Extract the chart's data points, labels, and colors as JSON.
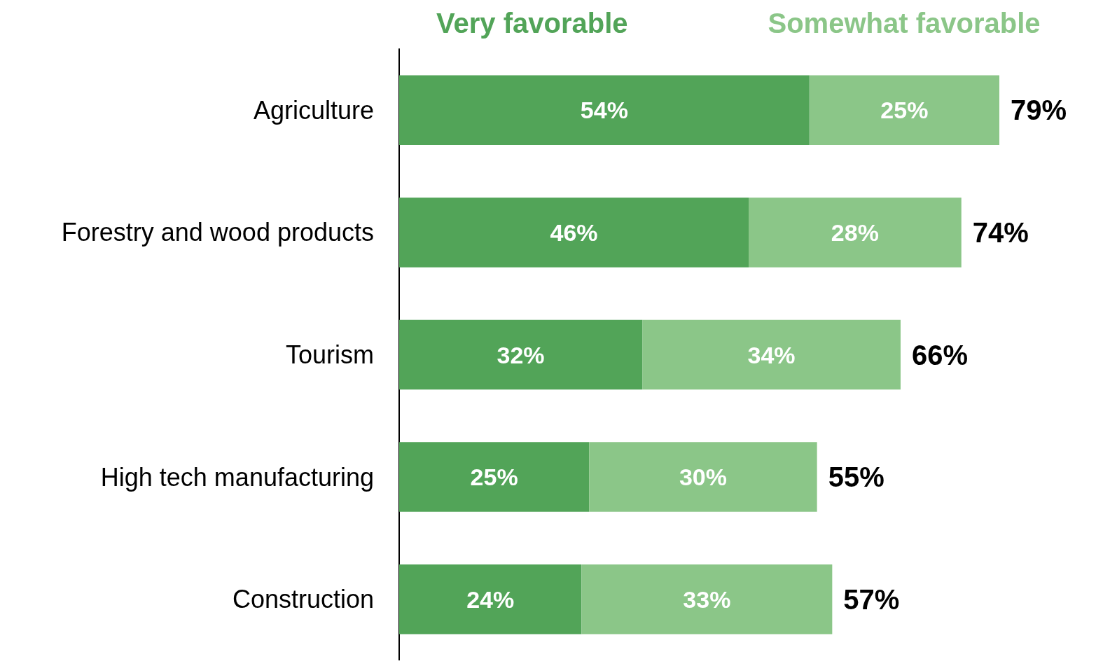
{
  "chart_data": {
    "type": "bar",
    "orientation": "horizontal",
    "stacked": true,
    "categories": [
      "Agriculture",
      "Forestry and wood products",
      "Tourism",
      "High tech manufacturing",
      "Construction"
    ],
    "series": [
      {
        "name": "Very favorable",
        "color": "#52a458",
        "values": [
          54,
          46,
          32,
          25,
          24
        ],
        "value_labels": [
          "54%",
          "46%",
          "32%",
          "25%",
          "24%"
        ]
      },
      {
        "name": "Somewhat favorable",
        "color": "#8bc688",
        "values": [
          25,
          28,
          34,
          30,
          33
        ],
        "value_labels": [
          "25%",
          "28%",
          "34%",
          "30%",
          "33%"
        ]
      }
    ],
    "totals": [
      "79%",
      "74%",
      "66%",
      "55%",
      "57%"
    ],
    "legend": "top"
  }
}
